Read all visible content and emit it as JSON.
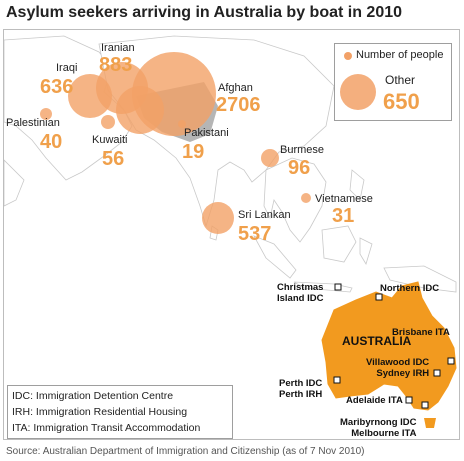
{
  "title": "Asylum seekers arriving in Australia by boat in 2010",
  "colors": {
    "bubble": "#f2a167",
    "number_text": "#f0a04b",
    "australia_fill": "#f29a1f",
    "land_outline": "#c9c9c9",
    "highlight_land": "#b5b5b5"
  },
  "legend": {
    "dot_label": "Number of people",
    "other_label": "Other",
    "other_value": "650"
  },
  "arrivals": [
    {
      "country": "Iranian",
      "count": "883"
    },
    {
      "country": "Iraqi",
      "count": "636"
    },
    {
      "country": "Afghan",
      "count": "2706"
    },
    {
      "country": "Palestinian",
      "count": "40"
    },
    {
      "country": "Kuwaiti",
      "count": "56"
    },
    {
      "country": "Pakistani",
      "count": "19"
    },
    {
      "country": "Burmese",
      "count": "96"
    },
    {
      "country": "Vietnamese",
      "count": "31"
    },
    {
      "country": "Sri Lankan",
      "count": "537"
    }
  ],
  "australia_label": "AUSTRALIA",
  "facilities": [
    {
      "label": "Christmas Island IDC",
      "line1": "Christmas",
      "line2": "Island IDC"
    },
    {
      "label": "Northern IDC",
      "line1": "Northern IDC",
      "line2": ""
    },
    {
      "label": "Brisbane ITA",
      "line1": "Brisbane ITA",
      "line2": ""
    },
    {
      "label": "Villawood IDC / Sydney IRH",
      "line1": "Villawood IDC",
      "line2": "Sydney IRH"
    },
    {
      "label": "Perth IDC / Perth IRH",
      "line1": "Perth IDC",
      "line2": "Perth IRH"
    },
    {
      "label": "Adelaide ITA",
      "line1": "Adelaide ITA",
      "line2": ""
    },
    {
      "label": "Maribyrnong IDC / Melbourne ITA",
      "line1": "Maribyrnong IDC",
      "line2": "Melbourne ITA"
    }
  ],
  "key": [
    "IDC: Immigration Detention Centre",
    "IRH: Immigration Residential Housing",
    "ITA: Immigration Transit Accommodation"
  ],
  "source": "Source: Australian Department of Immigration and Citizenship (as of 7 Nov 2010)"
}
